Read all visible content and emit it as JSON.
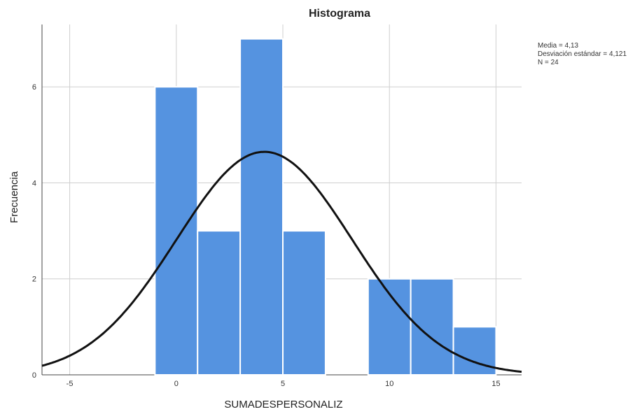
{
  "chart_data": {
    "type": "bar",
    "title": "Histograma",
    "xlabel": "SUMADESPERSONALIZ",
    "ylabel": "Frecuencia",
    "xlim": [
      -6.3,
      16.2
    ],
    "ylim": [
      0,
      7.3
    ],
    "x_ticks": [
      -5,
      0,
      5,
      10,
      15
    ],
    "x_tick_labels": [
      "-5",
      "0",
      "5",
      "10",
      "15"
    ],
    "y_ticks": [
      0,
      2,
      4,
      6
    ],
    "y_tick_labels": [
      "0",
      "2",
      "4",
      "6"
    ],
    "grid": true,
    "bins": [
      {
        "start": -1,
        "end": 1,
        "count": 6
      },
      {
        "start": 1,
        "end": 3,
        "count": 3
      },
      {
        "start": 3,
        "end": 5,
        "count": 7
      },
      {
        "start": 5,
        "end": 7,
        "count": 3
      },
      {
        "start": 7,
        "end": 9,
        "count": 0
      },
      {
        "start": 9,
        "end": 11,
        "count": 2
      },
      {
        "start": 11,
        "end": 13,
        "count": 2
      },
      {
        "start": 13,
        "end": 15,
        "count": 1
      }
    ],
    "normal_curve": {
      "mean": 4.13,
      "sd": 4.121,
      "n": 24,
      "bin_width": 2
    },
    "stats": {
      "mean_text": "Media = 4,13",
      "sd_text": "Desviación estándar = 4,121",
      "n_text": "N = 24"
    },
    "colors": {
      "bar": "#5593e0",
      "curve": "#111111",
      "grid": "#cfcfcf"
    }
  }
}
